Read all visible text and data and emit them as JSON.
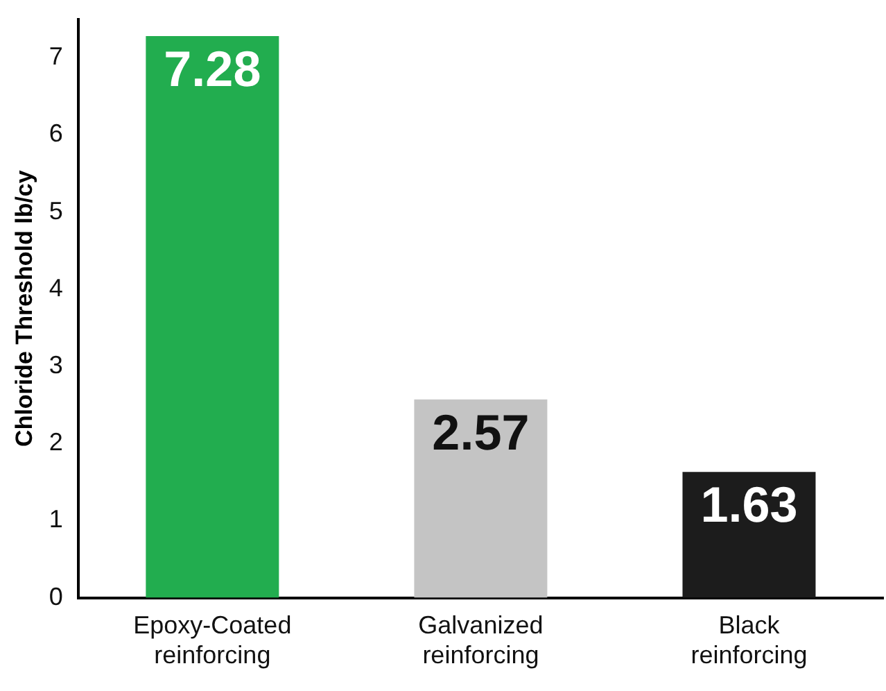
{
  "chart_data": {
    "type": "bar",
    "ylabel": "Chloride Threshold lb/cy",
    "categories": [
      "Epoxy-Coated reinforcing",
      "Galvanized reinforcing",
      "Black reinforcing"
    ],
    "values": [
      7.28,
      2.57,
      1.63
    ],
    "colors": [
      "#22ad4f",
      "#c4c4c4",
      "#1c1c1c"
    ],
    "ylim": [
      0,
      7.5
    ],
    "yticks": [
      0,
      1,
      2,
      3,
      4,
      5,
      6,
      7
    ],
    "grid": false,
    "legend": false,
    "data_labels": true
  }
}
